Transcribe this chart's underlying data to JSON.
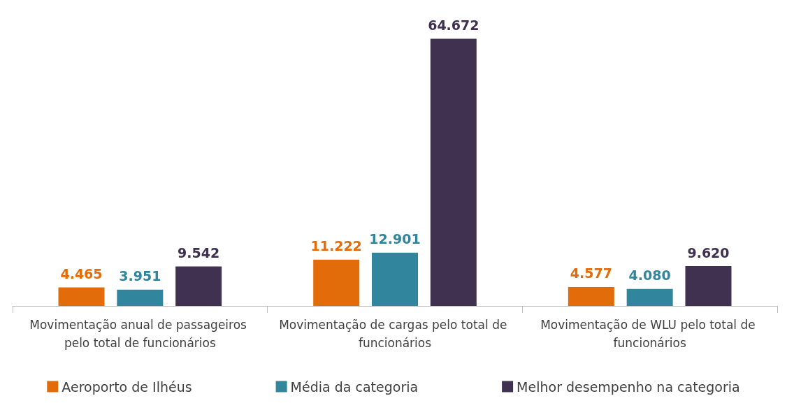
{
  "chart_data": {
    "type": "bar",
    "categories": [
      "Movimentação anual de passageiros pelo total de funcionários",
      "Movimentação de cargas pelo total de funcionários",
      "Movimentação de WLU pelo total de funcionários"
    ],
    "series": [
      {
        "name": "Aeroporto de Ilhéus",
        "color": "#e36c0a",
        "values": [
          4465,
          11222,
          4577
        ],
        "value_labels": [
          "4.465",
          "11.222",
          "4.577"
        ]
      },
      {
        "name": "Média da categoria",
        "color": "#31859c",
        "values": [
          3951,
          12901,
          4080
        ],
        "value_labels": [
          "3.951",
          "12.901",
          "4.080"
        ]
      },
      {
        "name": "Melhor desempenho na categoria",
        "color": "#403151",
        "values": [
          9542,
          64672,
          9620
        ],
        "value_labels": [
          "9.542",
          "64.672",
          "9.620"
        ]
      }
    ],
    "grid": false,
    "legend": "bottom"
  }
}
